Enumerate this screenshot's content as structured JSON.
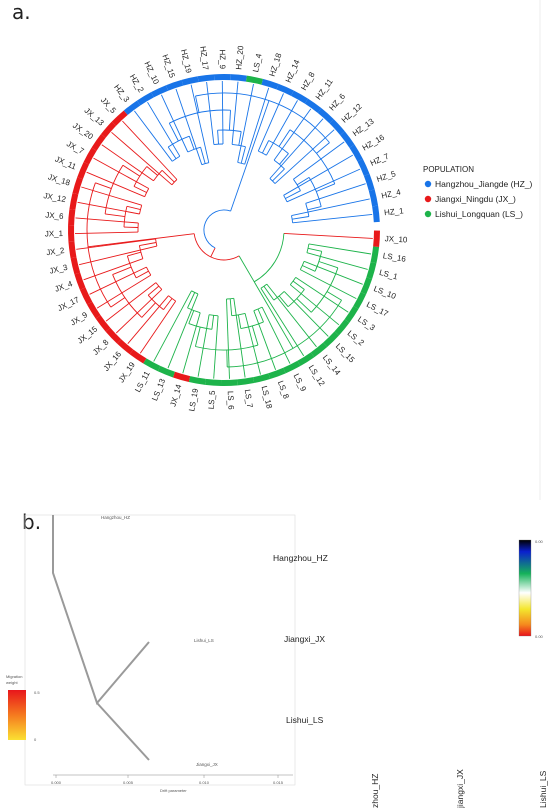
{
  "panel_a": {
    "label": "a.",
    "legend": {
      "title": "POPULATION",
      "items": [
        {
          "label": "Hangzhou_Jiangde (HZ_)",
          "color": "#1874e8"
        },
        {
          "label": "Jiangxi_Ningdu (JX_)",
          "color": "#e8191a"
        },
        {
          "label": "Lishui_Longquan (LS_)",
          "color": "#1db34a"
        }
      ]
    },
    "leaves": [
      {
        "name": "HZ_1",
        "group": "HZ"
      },
      {
        "name": "HZ_4",
        "group": "HZ"
      },
      {
        "name": "HZ_5",
        "group": "HZ"
      },
      {
        "name": "HZ_7",
        "group": "HZ"
      },
      {
        "name": "HZ_16",
        "group": "HZ"
      },
      {
        "name": "HZ_13",
        "group": "HZ"
      },
      {
        "name": "HZ_12",
        "group": "HZ"
      },
      {
        "name": "HZ_6",
        "group": "HZ"
      },
      {
        "name": "HZ_11",
        "group": "HZ"
      },
      {
        "name": "HZ_8",
        "group": "HZ"
      },
      {
        "name": "HZ_14",
        "group": "HZ"
      },
      {
        "name": "HZ_18",
        "group": "HZ"
      },
      {
        "name": "LS_4",
        "group": "LS"
      },
      {
        "name": "HZ_20",
        "group": "HZ"
      },
      {
        "name": "HZ_9",
        "group": "HZ"
      },
      {
        "name": "HZ_17",
        "group": "HZ"
      },
      {
        "name": "HZ_19",
        "group": "HZ"
      },
      {
        "name": "HZ_15",
        "group": "HZ"
      },
      {
        "name": "HZ_10",
        "group": "HZ"
      },
      {
        "name": "HZ_2",
        "group": "HZ"
      },
      {
        "name": "HZ_3",
        "group": "HZ"
      },
      {
        "name": "JX_5",
        "group": "JX"
      },
      {
        "name": "JX_13",
        "group": "JX"
      },
      {
        "name": "JX_20",
        "group": "JX"
      },
      {
        "name": "JX_7",
        "group": "JX"
      },
      {
        "name": "JX_11",
        "group": "JX"
      },
      {
        "name": "JX_18",
        "group": "JX"
      },
      {
        "name": "JX_12",
        "group": "JX"
      },
      {
        "name": "JX_6",
        "group": "JX"
      },
      {
        "name": "JX_1",
        "group": "JX"
      },
      {
        "name": "JX_2",
        "group": "JX"
      },
      {
        "name": "JX_3",
        "group": "JX"
      },
      {
        "name": "JX_4",
        "group": "JX"
      },
      {
        "name": "JX_17",
        "group": "JX"
      },
      {
        "name": "JX_9",
        "group": "JX"
      },
      {
        "name": "JX_15",
        "group": "JX"
      },
      {
        "name": "JX_8",
        "group": "JX"
      },
      {
        "name": "JX_16",
        "group": "JX"
      },
      {
        "name": "JX_19",
        "group": "JX"
      },
      {
        "name": "LS_11",
        "group": "LS"
      },
      {
        "name": "LS_13",
        "group": "LS"
      },
      {
        "name": "JX_14",
        "group": "JX"
      },
      {
        "name": "LS_19",
        "group": "LS"
      },
      {
        "name": "LS_5",
        "group": "LS"
      },
      {
        "name": "LS_6",
        "group": "LS"
      },
      {
        "name": "LS_7",
        "group": "LS"
      },
      {
        "name": "LS_18",
        "group": "LS"
      },
      {
        "name": "LS_8",
        "group": "LS"
      },
      {
        "name": "LS_9",
        "group": "LS"
      },
      {
        "name": "LS_12",
        "group": "LS"
      },
      {
        "name": "LS_14",
        "group": "LS"
      },
      {
        "name": "LS_15",
        "group": "LS"
      },
      {
        "name": "LS_2",
        "group": "LS"
      },
      {
        "name": "LS_3",
        "group": "LS"
      },
      {
        "name": "LS_17",
        "group": "LS"
      },
      {
        "name": "LS_10",
        "group": "LS"
      },
      {
        "name": "LS_1",
        "group": "LS"
      },
      {
        "name": "LS_16",
        "group": "LS"
      },
      {
        "name": "JX_10",
        "group": "JX"
      }
    ]
  },
  "panel_b": {
    "label": "b.",
    "tree_tip_labels": [
      "Hangzhou_HZ",
      "Lishui_LS",
      "Jiangxi_JX"
    ],
    "row_labels": [
      "Hangzhou_HZ",
      "Jiangxi_JX",
      "Lishui_LS"
    ],
    "col_labels": [
      "zhou_HZ",
      "jiangxi_JX",
      "Lishui_LS"
    ],
    "x_axis_label": "Drift parameter",
    "x_ticks": [
      "0.000",
      "0.005",
      "0.010",
      "0.015"
    ],
    "migration_legend_title": "Migration",
    "migration_legend_sub": "weight",
    "migration_scale": [
      "0.5",
      "0"
    ],
    "residual_scale": [
      "0.00",
      "0.00"
    ]
  }
}
